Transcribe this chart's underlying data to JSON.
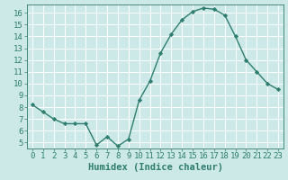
{
  "x": [
    0,
    1,
    2,
    3,
    4,
    5,
    6,
    7,
    8,
    9,
    10,
    11,
    12,
    13,
    14,
    15,
    16,
    17,
    18,
    19,
    20,
    21,
    22,
    23
  ],
  "y": [
    8.2,
    7.6,
    7.0,
    6.6,
    6.6,
    6.6,
    4.8,
    5.5,
    4.7,
    5.3,
    8.6,
    10.2,
    12.6,
    14.2,
    15.4,
    16.1,
    16.4,
    16.3,
    15.8,
    14.0,
    12.0,
    11.0,
    10.0,
    9.5
  ],
  "line_color": "#2e7d6e",
  "marker": "D",
  "markersize": 2.2,
  "linewidth": 1.0,
  "xlabel": "Humidex (Indice chaleur)",
  "xlim": [
    -0.5,
    23.5
  ],
  "ylim": [
    4.5,
    16.7
  ],
  "yticks": [
    5,
    6,
    7,
    8,
    9,
    10,
    11,
    12,
    13,
    14,
    15,
    16
  ],
  "xticks": [
    0,
    1,
    2,
    3,
    4,
    5,
    6,
    7,
    8,
    9,
    10,
    11,
    12,
    13,
    14,
    15,
    16,
    17,
    18,
    19,
    20,
    21,
    22,
    23
  ],
  "bg_color": "#cce9e8",
  "grid_color": "#ffffff",
  "tick_color": "#2e7d6e",
  "label_color": "#2e7d6e",
  "axis_fontsize": 6.5,
  "xlabel_fontsize": 7.5
}
